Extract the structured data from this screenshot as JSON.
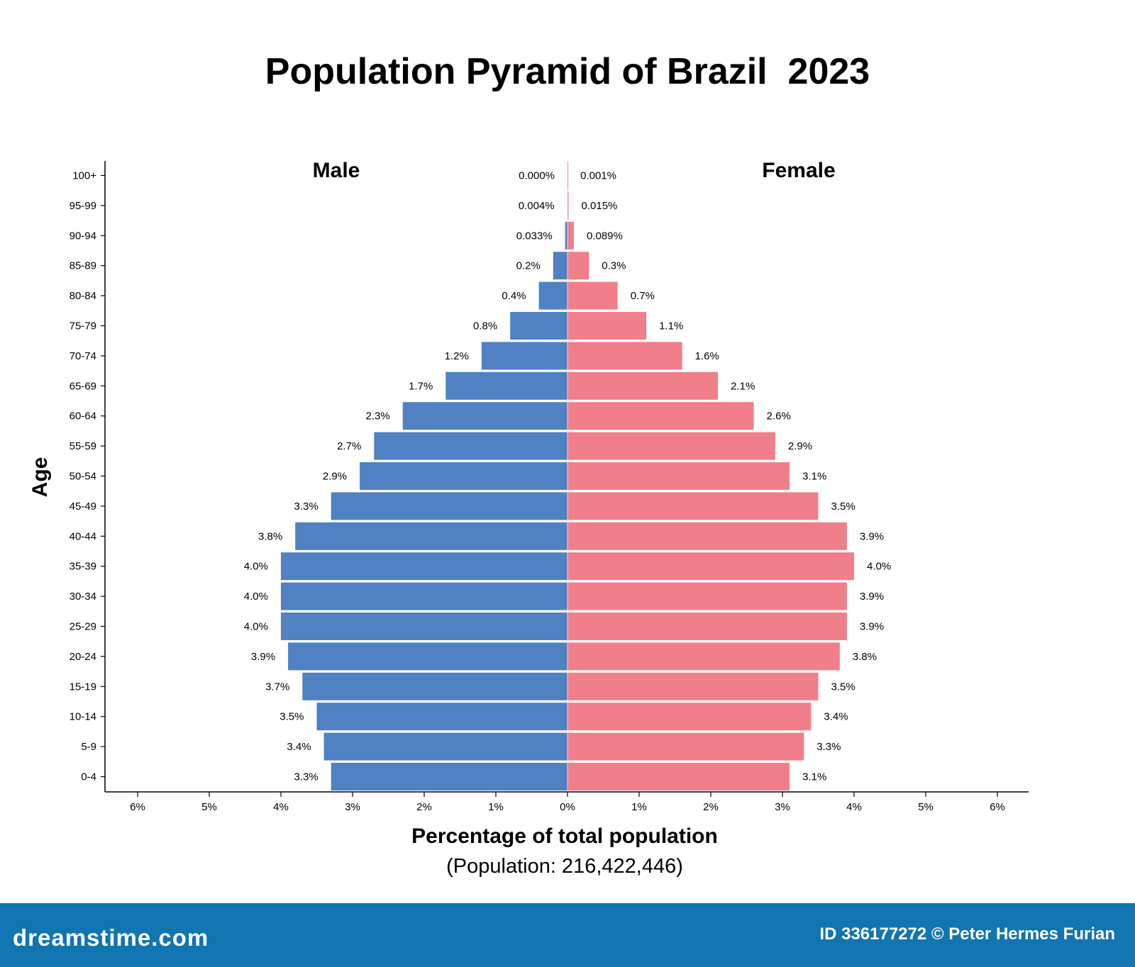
{
  "chart_data": {
    "type": "bar",
    "title": "Population Pyramid of Brazil  2023",
    "left_label": "Male",
    "right_label": "Female",
    "ylabel": "Age",
    "xlabel": "Percentage of total population",
    "subtitle": "(Population: 216,422,446)",
    "categories": [
      "100+",
      "95-99",
      "90-94",
      "85-89",
      "80-84",
      "75-79",
      "70-74",
      "65-69",
      "60-64",
      "55-59",
      "50-54",
      "45-49",
      "40-44",
      "35-39",
      "30-34",
      "25-29",
      "20-24",
      "15-19",
      "10-14",
      "5-9",
      "0-4"
    ],
    "x_ticks": [
      "6%",
      "5%",
      "4%",
      "3%",
      "2%",
      "1%",
      "0%",
      "1%",
      "2%",
      "3%",
      "4%",
      "5%",
      "6%"
    ],
    "xlim": [
      -6.4,
      6.4
    ],
    "series": [
      {
        "name": "Male",
        "color": "#4f81c3",
        "values": [
          0.0,
          0.004,
          0.033,
          0.2,
          0.4,
          0.8,
          1.2,
          1.7,
          2.3,
          2.7,
          2.9,
          3.3,
          3.8,
          4.0,
          4.0,
          4.0,
          3.9,
          3.7,
          3.5,
          3.4,
          3.3
        ],
        "labels": [
          "0.000%",
          "0.004%",
          "0.033%",
          "0.2%",
          "0.4%",
          "0.8%",
          "1.2%",
          "1.7%",
          "2.3%",
          "2.7%",
          "2.9%",
          "3.3%",
          "3.8%",
          "4.0%",
          "4.0%",
          "4.0%",
          "3.9%",
          "3.7%",
          "3.5%",
          "3.4%",
          "3.3%"
        ]
      },
      {
        "name": "Female",
        "color": "#f07f8a",
        "values": [
          0.001,
          0.015,
          0.089,
          0.3,
          0.7,
          1.1,
          1.6,
          2.1,
          2.6,
          2.9,
          3.1,
          3.5,
          3.9,
          4.0,
          3.9,
          3.9,
          3.8,
          3.5,
          3.4,
          3.3,
          3.1
        ],
        "labels": [
          "0.001%",
          "0.015%",
          "0.089%",
          "0.3%",
          "0.7%",
          "1.1%",
          "1.6%",
          "2.1%",
          "2.6%",
          "2.9%",
          "3.1%",
          "3.5%",
          "3.9%",
          "4.0%",
          "3.9%",
          "3.9%",
          "3.8%",
          "3.5%",
          "3.4%",
          "3.3%",
          "3.1%"
        ]
      }
    ]
  },
  "footer": {
    "brand": "dreamstime.com",
    "credit": "ID 336177272 © Peter Hermes Furian",
    "background": "#1075b1"
  }
}
